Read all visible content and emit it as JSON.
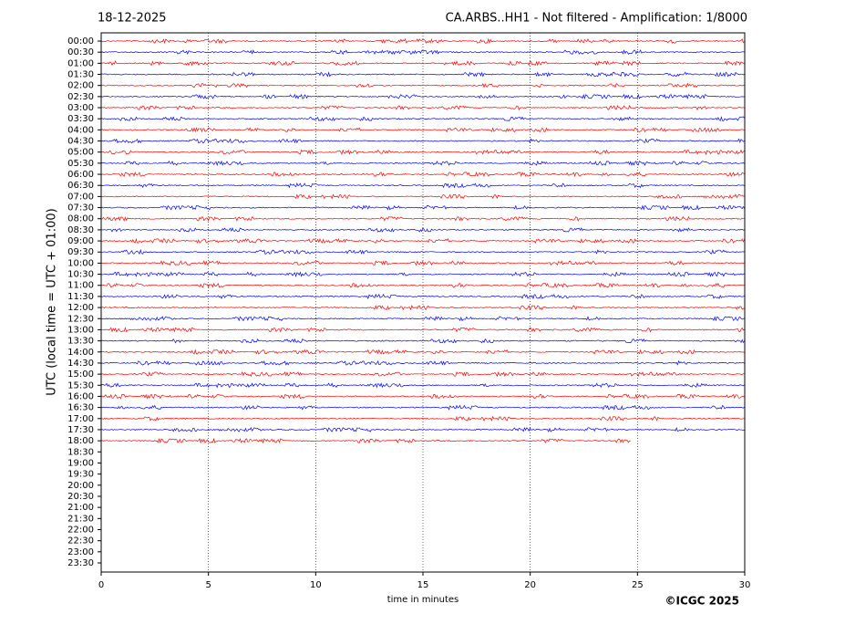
{
  "chart_data": {
    "type": "helicorder",
    "date": "18-12-2025",
    "title": "CA.ARBS..HH1 - Not filtered - Amplification: 1/8000",
    "xlabel": "time in minutes",
    "ylabel": "UTC (local time = UTC + 01:00)",
    "credit": "©ICGC 2025",
    "categories": [
      "00:00",
      "00:30",
      "01:00",
      "01:30",
      "02:00",
      "02:30",
      "03:00",
      "03:30",
      "04:00",
      "04:30",
      "05:00",
      "05:30",
      "06:00",
      "06:30",
      "07:00",
      "07:30",
      "08:00",
      "08:30",
      "09:00",
      "09:30",
      "10:00",
      "10:30",
      "11:00",
      "11:30",
      "12:00",
      "12:30",
      "13:00",
      "13:30",
      "14:00",
      "14:30",
      "15:00",
      "15:30",
      "16:00",
      "16:30",
      "17:00",
      "17:30",
      "18:00",
      "18:30",
      "19:00",
      "19:30",
      "20:00",
      "20:30",
      "21:00",
      "21:30",
      "22:00",
      "22:30",
      "23:00",
      "23:30"
    ],
    "values": [
      30,
      30,
      30,
      30,
      30,
      30,
      30,
      30,
      30,
      30,
      30,
      30,
      30,
      30,
      30,
      30,
      30,
      30,
      30,
      30,
      30,
      30,
      30,
      30,
      30,
      30,
      30,
      30,
      30,
      30,
      30,
      30,
      30,
      30,
      30,
      30,
      24.7,
      null,
      null,
      null,
      null,
      null,
      null,
      null,
      null,
      null,
      null,
      null
    ],
    "colors": [
      "#ff0000",
      "#0000ff"
    ],
    "xlim": [
      0,
      30
    ],
    "xticks": [
      0,
      5,
      10,
      15,
      20,
      25,
      30
    ],
    "grid": true
  }
}
